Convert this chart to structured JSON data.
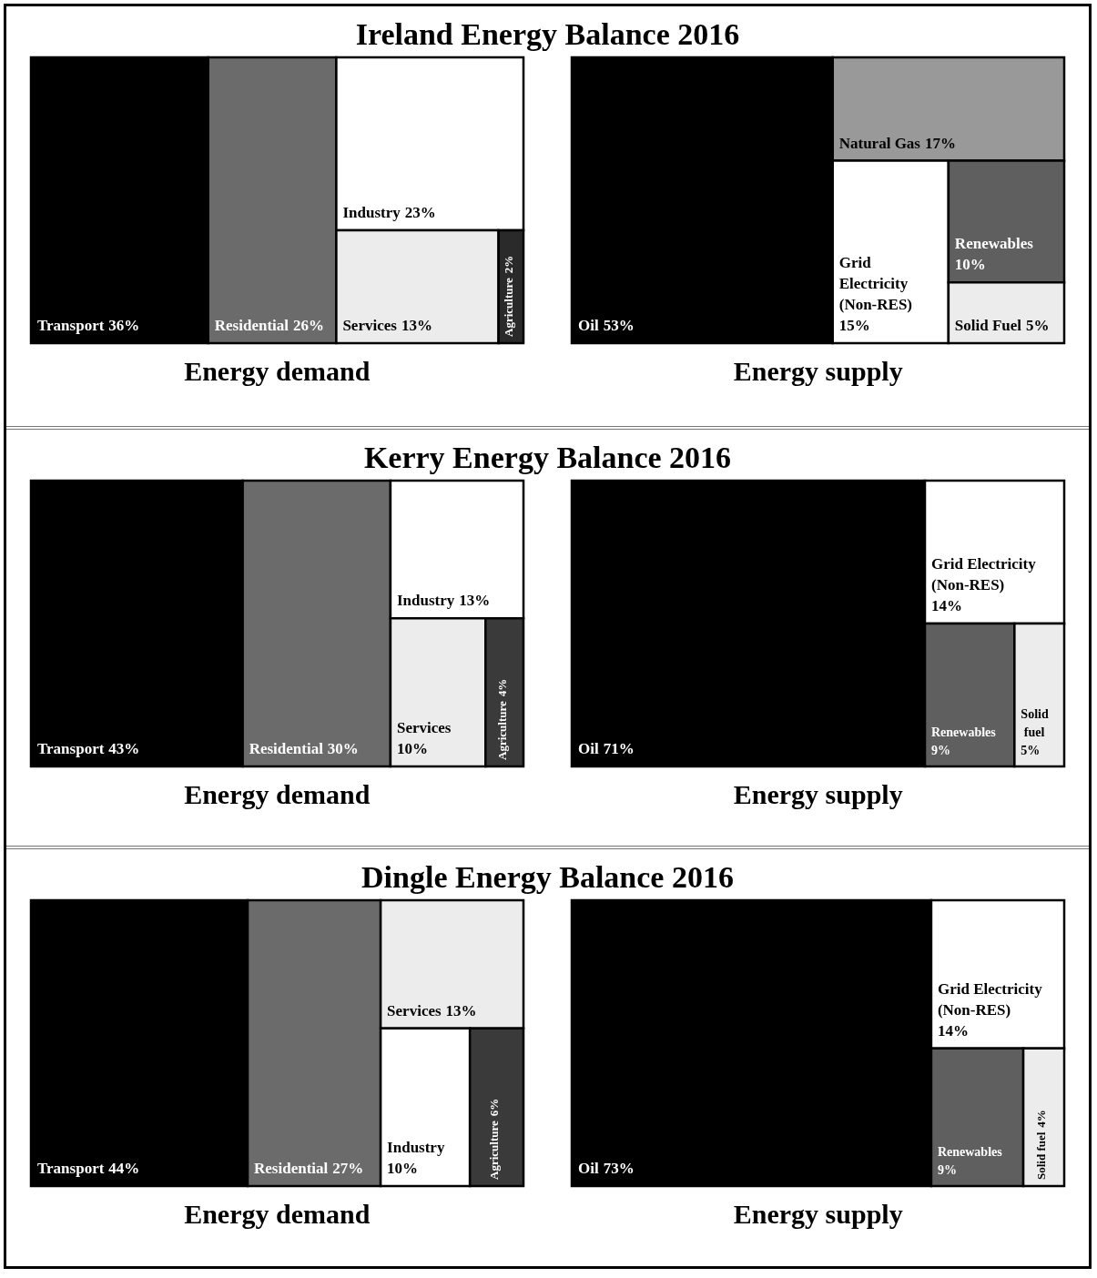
{
  "chart_data": [
    {
      "type": "other",
      "title": "Ireland Energy Balance 2016",
      "subtitle": "Energy demand",
      "categories": [
        "Transport",
        "Residential",
        "Industry",
        "Services",
        "Agriculture"
      ],
      "values": [
        36,
        26,
        23,
        13,
        2
      ],
      "value_labels": [
        "36%",
        "26%",
        "23%",
        "13%",
        "2%"
      ],
      "colors": [
        "#000000",
        "#6b6b6b",
        "#ffffff",
        "#ececec",
        "#2a2a2a"
      ]
    },
    {
      "type": "other",
      "subtitle": "Energy supply",
      "categories": [
        "Oil",
        "Natural Gas",
        "Grid Electricity (Non-RES)",
        "Renewables",
        "Solid Fuel"
      ],
      "values": [
        53,
        17,
        15,
        10,
        5
      ],
      "value_labels": [
        "53%",
        "17%",
        "15%",
        "10%",
        "5%"
      ],
      "colors": [
        "#000000",
        "#999999",
        "#ffffff",
        "#5f5f5f",
        "#ececec"
      ]
    },
    {
      "type": "other",
      "title": "Kerry Energy Balance 2016",
      "subtitle": "Energy demand",
      "categories": [
        "Transport",
        "Residential",
        "Industry",
        "Services",
        "Agriculture"
      ],
      "values": [
        43,
        30,
        13,
        10,
        4
      ],
      "value_labels": [
        "43%",
        "30%",
        "13%",
        "10%",
        "4%"
      ],
      "colors": [
        "#000000",
        "#6b6b6b",
        "#ffffff",
        "#ececec",
        "#3a3a3a"
      ]
    },
    {
      "type": "other",
      "subtitle": "Energy supply",
      "categories": [
        "Oil",
        "Grid Electricity (Non-RES)",
        "Renewables",
        "Solid fuel"
      ],
      "values": [
        71,
        14,
        9,
        5
      ],
      "value_labels": [
        "71%",
        "14%",
        "9%",
        "5%"
      ],
      "colors": [
        "#000000",
        "#ffffff",
        "#5f5f5f",
        "#ececec"
      ]
    },
    {
      "type": "other",
      "title": "Dingle Energy Balance 2016",
      "subtitle": "Energy demand",
      "categories": [
        "Transport",
        "Residential",
        "Services",
        "Industry",
        "Agriculture"
      ],
      "values": [
        44,
        27,
        13,
        10,
        6
      ],
      "value_labels": [
        "44%",
        "27%",
        "13%",
        "10%",
        "6%"
      ],
      "colors": [
        "#000000",
        "#6b6b6b",
        "#ececec",
        "#ffffff",
        "#3a3a3a"
      ]
    },
    {
      "type": "other",
      "subtitle": "Energy supply",
      "categories": [
        "Oil",
        "Grid Electricity (Non-RES)",
        "Renewables",
        "Solid fuel"
      ],
      "values": [
        73,
        14,
        9,
        4
      ],
      "value_labels": [
        "73%",
        "14%",
        "9%",
        "4%"
      ],
      "colors": [
        "#000000",
        "#ffffff",
        "#5f5f5f",
        "#ececec"
      ]
    }
  ]
}
